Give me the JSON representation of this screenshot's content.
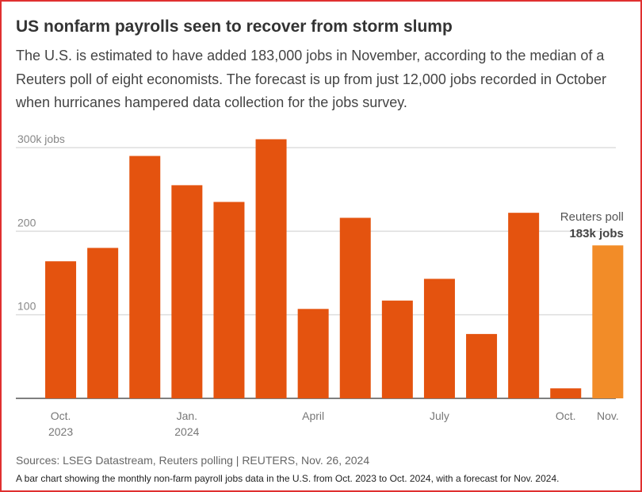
{
  "chart_data": {
    "type": "bar",
    "title": "US nonfarm payrolls seen to recover from storm slump",
    "subtitle": "The U.S. is estimated to have added 183,000 jobs in November, according to the median of a Reuters poll of eight economists. The forecast is up from just 12,000 jobs recorded in October when hurricanes hampered data collection for the jobs survey.",
    "categories": [
      "Oct.\n2023",
      null,
      null,
      "Jan.\n2024",
      null,
      null,
      "April",
      null,
      null,
      "July",
      null,
      null,
      "Oct.",
      "Nov."
    ],
    "values": [
      164,
      180,
      290,
      255,
      235,
      310,
      107,
      216,
      117,
      143,
      77,
      222,
      12,
      183
    ],
    "colors": [
      "#e4530f",
      "#e4530f",
      "#e4530f",
      "#e4530f",
      "#e4530f",
      "#e4530f",
      "#e4530f",
      "#e4530f",
      "#e4530f",
      "#e4530f",
      "#e4530f",
      "#e4530f",
      "#e4530f",
      "#f28c28"
    ],
    "ylim": [
      0,
      300
    ],
    "yticks": [
      100,
      200,
      {
        "value": 300,
        "label": "300k jobs"
      }
    ],
    "grid": true,
    "annotation": {
      "line1": "Reuters poll",
      "line2": "183k jobs"
    },
    "source": "Sources: LSEG Datastream, Reuters polling | REUTERS, Nov. 26, 2024",
    "caption": "A bar chart showing the monthly non-farm payroll jobs data in the U.S. from Oct. 2023 to Oct. 2024, with a forecast for Nov. 2024."
  }
}
